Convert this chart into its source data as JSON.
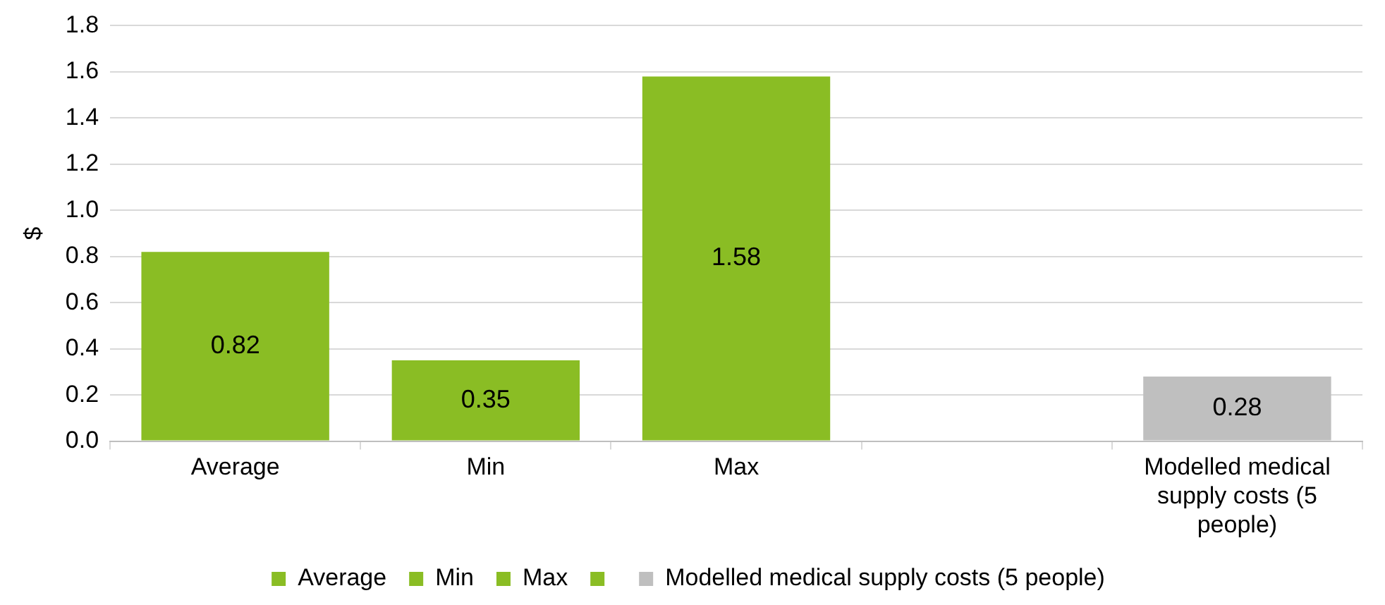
{
  "chart_data": {
    "type": "bar",
    "ylabel": "$",
    "categories": [
      "Average",
      "Min",
      "Max",
      null,
      "Modelled medical supply costs (5 people)"
    ],
    "series": [
      {
        "name": "Average",
        "color": "#8abd24",
        "values": [
          0.82,
          null,
          null,
          null,
          null
        ]
      },
      {
        "name": "Min",
        "color": "#8abd24",
        "values": [
          null,
          0.35,
          null,
          null,
          null
        ]
      },
      {
        "name": "Max",
        "color": "#8abd24",
        "values": [
          null,
          null,
          1.58,
          null,
          null
        ]
      },
      {
        "color": "#8abd24",
        "values": [
          null,
          null,
          null,
          null,
          null
        ]
      },
      {
        "name": "Modelled medical supply costs (5 people)",
        "color": "#bfbfbf",
        "values": [
          null,
          null,
          null,
          null,
          0.28
        ]
      }
    ],
    "ylim": [
      0,
      1.8
    ],
    "yticks": [
      {
        "value": 0,
        "label": "0.0"
      },
      {
        "value": 0.2,
        "label": "0.2"
      },
      {
        "value": 0.4,
        "label": "0.4"
      },
      {
        "value": 0.6,
        "label": "0.6"
      },
      {
        "value": 0.8,
        "label": "0.8"
      },
      {
        "value": 1,
        "label": "1.0"
      },
      {
        "value": 1.2,
        "label": "1.2"
      },
      {
        "value": 1.4,
        "label": "1.4"
      },
      {
        "value": 1.6,
        "label": "1.6"
      },
      {
        "value": 1.8,
        "label": "1.8"
      }
    ],
    "grid": "y",
    "legend": "bottom",
    "data_labels": true
  }
}
